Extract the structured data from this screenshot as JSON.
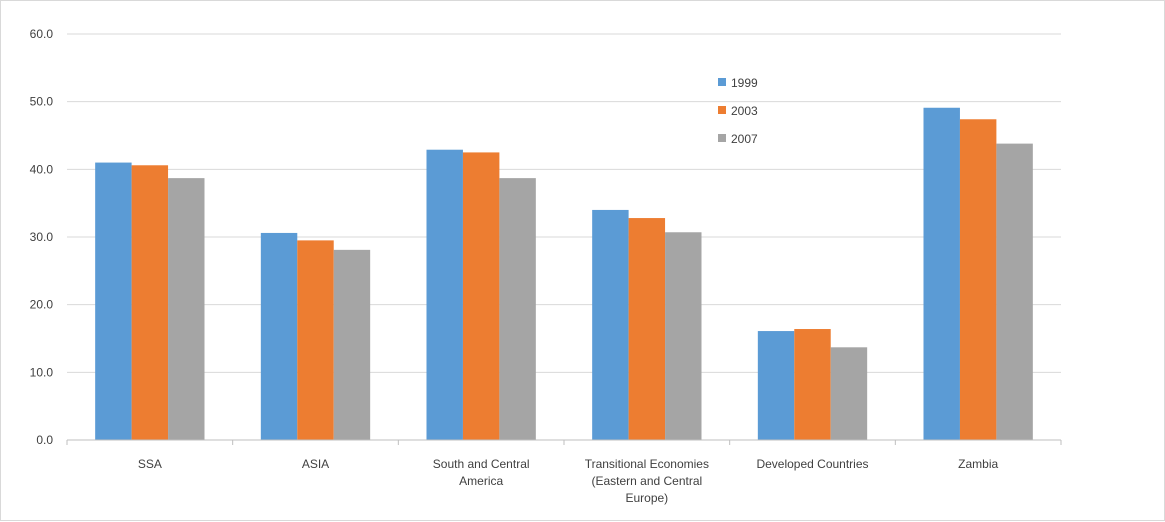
{
  "chart_data": {
    "type": "bar",
    "categories": [
      "SSA",
      "ASIA",
      "South and Central America",
      "Transitional Economies (Eastern and Central Europe)",
      "Developed Countries",
      "Zambia"
    ],
    "category_lines": [
      [
        "SSA"
      ],
      [
        "ASIA"
      ],
      [
        "South and Central",
        "America"
      ],
      [
        "Transitional Economies",
        "(Eastern and Central",
        "Europe)"
      ],
      [
        "Developed Countries"
      ],
      [
        "Zambia"
      ]
    ],
    "series": [
      {
        "name": "1999",
        "color": "#5b9bd5",
        "values": [
          41.0,
          30.6,
          42.9,
          34.0,
          16.1,
          49.1
        ]
      },
      {
        "name": "2003",
        "color": "#ed7d31",
        "values": [
          40.6,
          29.5,
          42.5,
          32.8,
          16.4,
          47.4
        ]
      },
      {
        "name": "2007",
        "color": "#a5a5a5",
        "values": [
          38.7,
          28.1,
          38.7,
          30.7,
          13.7,
          43.8
        ]
      }
    ],
    "yticks": [
      "0.0",
      "10.0",
      "20.0",
      "30.0",
      "40.0",
      "50.0",
      "60.0"
    ],
    "ylim": [
      0,
      60
    ],
    "grid": true,
    "legend_position": "top-right-inside",
    "title": "",
    "xlabel": "",
    "ylabel": ""
  }
}
